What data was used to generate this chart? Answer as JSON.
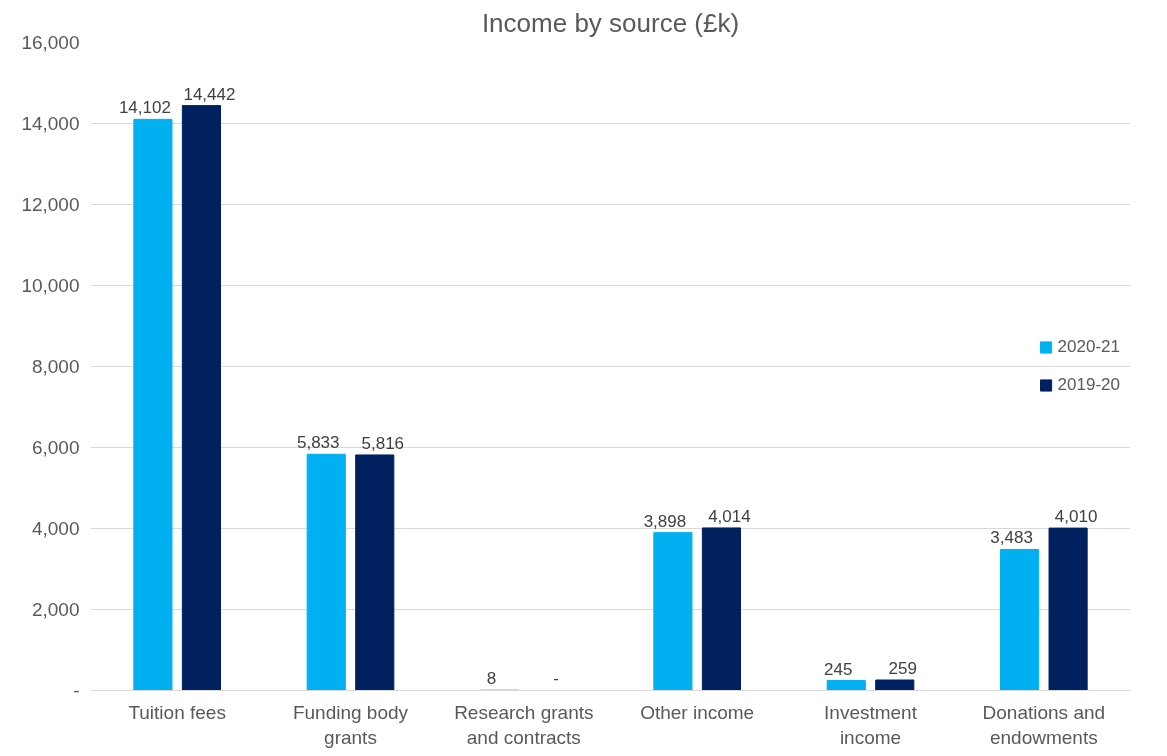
{
  "chart_data": {
    "type": "bar",
    "title": "Income by source (£k)",
    "categories": [
      "Tuition fees",
      "Funding body grants",
      "Research grants and contracts",
      "Other income",
      "Investment income",
      "Donations and endowments"
    ],
    "series": [
      {
        "name": "2020-21",
        "color": "#00b0f0",
        "values": [
          14102,
          5833,
          8,
          3898,
          245,
          3483
        ],
        "value_labels": [
          "14,102",
          "5,833",
          "8",
          "3,898",
          "245",
          "3,483"
        ]
      },
      {
        "name": "2019-20",
        "color": "#002060",
        "values": [
          14442,
          5816,
          0,
          4014,
          259,
          4010
        ],
        "value_labels": [
          "14,442",
          "5,816",
          "-",
          "4,014",
          "259",
          "4,010"
        ]
      }
    ],
    "ylim": [
      0,
      16000
    ],
    "yticks": [
      {
        "value": 0,
        "label": "-"
      },
      {
        "value": 2000,
        "label": "2,000"
      },
      {
        "value": 4000,
        "label": "4,000"
      },
      {
        "value": 6000,
        "label": "6,000"
      },
      {
        "value": 8000,
        "label": "8,000"
      },
      {
        "value": 10000,
        "label": "10,000"
      },
      {
        "value": 12000,
        "label": "12,000"
      },
      {
        "value": 14000,
        "label": "14,000"
      },
      {
        "value": 16000,
        "label": "16,000"
      }
    ],
    "grid": "y",
    "legend": "right"
  }
}
